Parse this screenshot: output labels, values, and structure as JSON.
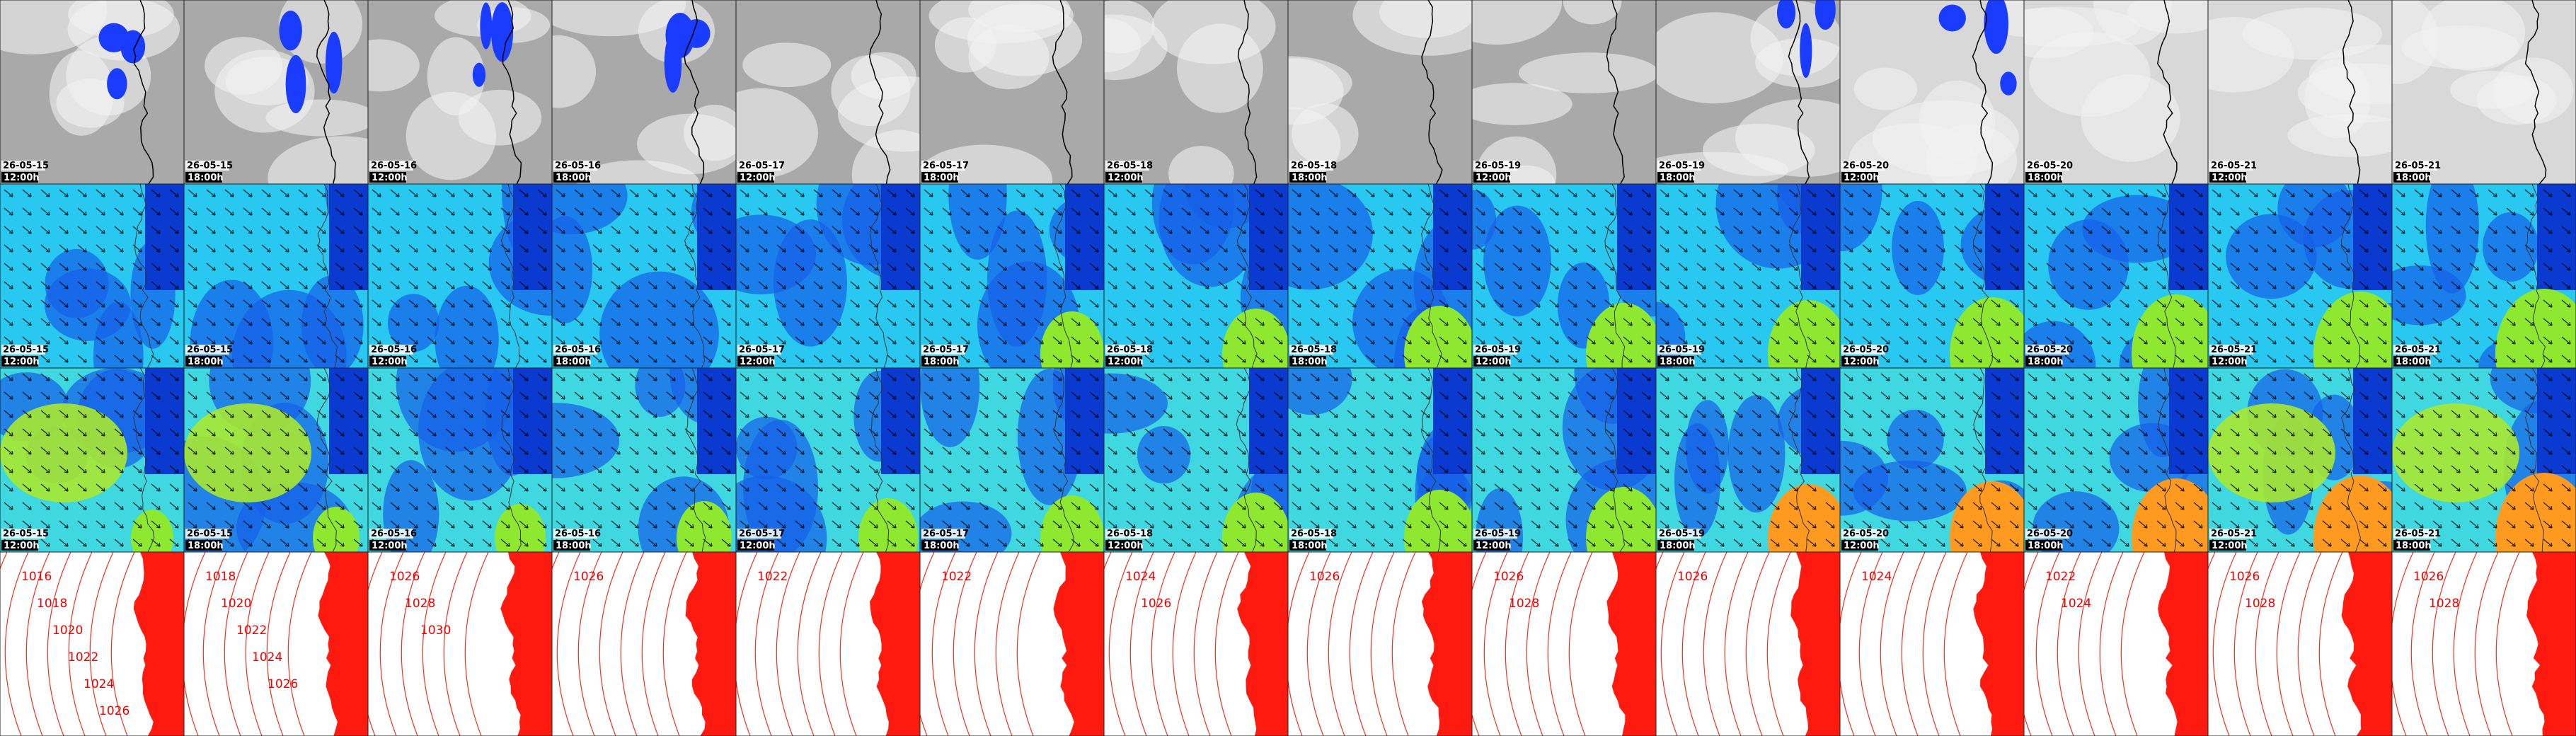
{
  "rows": [
    {
      "tiles": [
        {
          "date": "26-05-15",
          "time": "12:00h"
        },
        {
          "date": "26-05-15",
          "time": "18:00h"
        },
        {
          "date": "26-05-16",
          "time": "12:00h"
        },
        {
          "date": "26-05-16",
          "time": "18:00h"
        },
        {
          "date": "26-05-17",
          "time": "12:00h"
        },
        {
          "date": "26-05-17",
          "time": "18:00h"
        },
        {
          "date": "26-05-18",
          "time": "12:00h"
        },
        {
          "date": "26-05-18",
          "time": "18:00h"
        },
        {
          "date": "26-05-19",
          "time": "12:00h"
        },
        {
          "date": "26-05-19",
          "time": "18:00h"
        },
        {
          "date": "26-05-20",
          "time": "12:00h"
        },
        {
          "date": "26-05-20",
          "time": "18:00h"
        },
        {
          "date": "26-05-21",
          "time": "12:00h"
        },
        {
          "date": "26-05-21",
          "time": "18:00h"
        }
      ]
    },
    {
      "tiles": [
        {
          "date": "26-05-15",
          "time": "12:00h"
        },
        {
          "date": "26-05-15",
          "time": "18:00h"
        },
        {
          "date": "26-05-16",
          "time": "12:00h"
        },
        {
          "date": "26-05-16",
          "time": "18:00h"
        },
        {
          "date": "26-05-17",
          "time": "12:00h"
        },
        {
          "date": "26-05-17",
          "time": "18:00h"
        },
        {
          "date": "26-05-18",
          "time": "12:00h"
        },
        {
          "date": "26-05-18",
          "time": "18:00h"
        },
        {
          "date": "26-05-19",
          "time": "12:00h"
        },
        {
          "date": "26-05-19",
          "time": "18:00h"
        },
        {
          "date": "26-05-20",
          "time": "12:00h"
        },
        {
          "date": "26-05-20",
          "time": "18:00h"
        },
        {
          "date": "26-05-21",
          "time": "12:00h"
        },
        {
          "date": "26-05-21",
          "time": "18:00h"
        }
      ]
    },
    {
      "tiles": [
        {
          "date": "26-05-15",
          "time": "12:00h"
        },
        {
          "date": "26-05-15",
          "time": "18:00h"
        },
        {
          "date": "26-05-16",
          "time": "12:00h"
        },
        {
          "date": "26-05-16",
          "time": "18:00h"
        },
        {
          "date": "26-05-17",
          "time": "12:00h"
        },
        {
          "date": "26-05-17",
          "time": "18:00h"
        },
        {
          "date": "26-05-18",
          "time": "12:00h"
        },
        {
          "date": "26-05-18",
          "time": "18:00h"
        },
        {
          "date": "26-05-19",
          "time": "12:00h"
        },
        {
          "date": "26-05-19",
          "time": "18:00h"
        },
        {
          "date": "26-05-20",
          "time": "12:00h"
        },
        {
          "date": "26-05-20",
          "time": "18:00h"
        },
        {
          "date": "26-05-21",
          "time": "12:00h"
        },
        {
          "date": "26-05-21",
          "time": "18:00h"
        }
      ]
    }
  ],
  "pressure_labels": [
    [
      "1016",
      "1018",
      "1020",
      "1022",
      "1024",
      "1026"
    ],
    [
      "1018",
      "1020",
      "1022",
      "1024",
      "1026"
    ],
    [
      "1026",
      "1028",
      "1030"
    ],
    [
      "1026"
    ],
    [
      "1022"
    ],
    [
      "1022"
    ],
    [
      "1024",
      "1026"
    ],
    [
      "1026"
    ],
    [
      "1026",
      "1028"
    ],
    [
      "1026"
    ],
    [
      "1024"
    ],
    [
      "1022",
      "1024"
    ],
    [
      "1026",
      "1028"
    ],
    [
      "1026",
      "1028"
    ]
  ]
}
